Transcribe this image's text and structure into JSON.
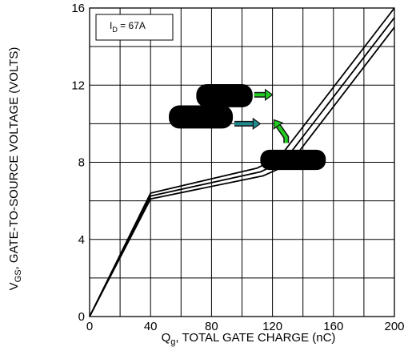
{
  "chart_data": {
    "type": "line",
    "title": "",
    "xlabel": {
      "main": "Q",
      "sub": "g",
      "rest": ", TOTAL GATE CHARGE (nC)"
    },
    "ylabel": {
      "main": "V",
      "sub": "GS",
      "rest": ", GATE-TO-SOURCE VOLTAGE (VOLTS)"
    },
    "xlim": [
      0,
      200
    ],
    "ylim": [
      0,
      16
    ],
    "x_ticks": [
      0,
      40,
      80,
      120,
      160,
      200
    ],
    "y_ticks": [
      0,
      4,
      8,
      12,
      16
    ],
    "grid": true,
    "annotation": {
      "main": "I",
      "sub": "D",
      "rest": " = 67A"
    },
    "series": [
      {
        "x": [
          0,
          40,
          110,
          125,
          200
        ],
        "y": [
          0,
          6.4,
          7.7,
          8.3,
          16.0
        ]
      },
      {
        "x": [
          0,
          40,
          112,
          128,
          200
        ],
        "y": [
          0,
          6.25,
          7.5,
          8.1,
          15.5
        ]
      },
      {
        "x": [
          0,
          40,
          114,
          131,
          200
        ],
        "y": [
          0,
          6.1,
          7.3,
          7.9,
          15.0
        ]
      }
    ],
    "redaction_marks": [
      {
        "x": [
          70,
          107
        ],
        "y": [
          12.05,
          10.85
        ]
      },
      {
        "x": [
          52,
          94
        ],
        "y": [
          10.95,
          9.75
        ]
      },
      {
        "x": [
          112,
          155
        ],
        "y": [
          8.65,
          7.6
        ]
      }
    ],
    "arrows": [
      {
        "color": "#22cc22",
        "from": [
          108,
          11.5
        ],
        "to": [
          120,
          11.5
        ]
      },
      {
        "color": "#1e8a8e",
        "from": [
          95,
          10.0
        ],
        "to": [
          112,
          10.0
        ]
      },
      {
        "color": "#22cc22",
        "from": [
          129,
          9.3
        ],
        "to": [
          121,
          10.2
        ],
        "tail": [
          129,
          9.0
        ]
      }
    ]
  }
}
